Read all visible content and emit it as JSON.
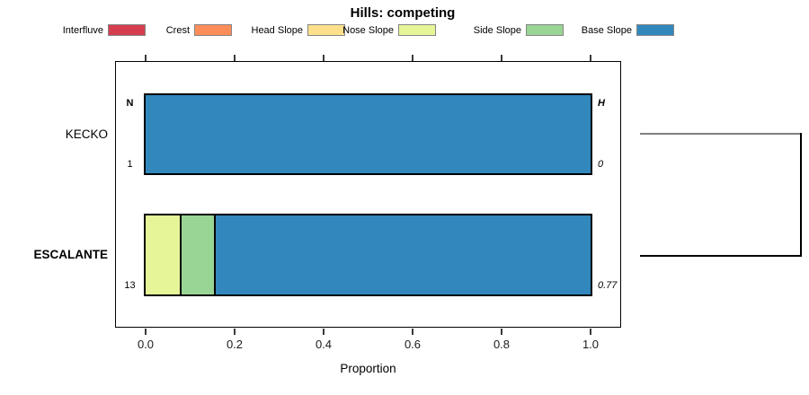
{
  "title": "Hills: competing",
  "legend": {
    "items": [
      {
        "label": "Interfluve",
        "color": "#D53E4F"
      },
      {
        "label": "Crest",
        "color": "#FC8D59"
      },
      {
        "label": "Head Slope",
        "color": "#FEE08B"
      },
      {
        "label": "Nose Slope",
        "color": "#E6F598"
      },
      {
        "label": "Side Slope",
        "color": "#99D594"
      },
      {
        "label": "Base Slope",
        "color": "#3288BD"
      }
    ]
  },
  "chart_data": {
    "type": "bar",
    "stacked": true,
    "orientation": "horizontal",
    "title": "Hills: competing",
    "xlabel": "Proportion",
    "xlim": [
      0,
      1.0
    ],
    "xticks": [
      "0.0",
      "0.2",
      "0.4",
      "0.6",
      "0.8",
      "1.0"
    ],
    "xtick_values": [
      0,
      0.2,
      0.4,
      0.6,
      0.8,
      1.0
    ],
    "grid": false,
    "legend_position": "top",
    "categories": [
      "KECKO",
      "ESCALANTE"
    ],
    "category_bold": [
      false,
      true
    ],
    "series": [
      {
        "name": "Interfluve",
        "color": "#D53E4F",
        "values": [
          0,
          0
        ]
      },
      {
        "name": "Crest",
        "color": "#FC8D59",
        "values": [
          0,
          0
        ]
      },
      {
        "name": "Head Slope",
        "color": "#FEE08B",
        "values": [
          0,
          0
        ]
      },
      {
        "name": "Nose Slope",
        "color": "#E6F598",
        "values": [
          0,
          0.077
        ]
      },
      {
        "name": "Side Slope",
        "color": "#99D594",
        "values": [
          0,
          0.077
        ]
      },
      {
        "name": "Base Slope",
        "color": "#3288BD",
        "values": [
          1.0,
          0.846
        ]
      }
    ],
    "annotations": {
      "n_header": "N",
      "h_header": "H",
      "n_values": [
        "1",
        "13"
      ],
      "h_values": [
        "0",
        "0.77"
      ]
    },
    "cluster_bracket": {
      "joined_rows": [
        "KECKO",
        "ESCALANTE"
      ],
      "top_line_color": "#808080",
      "line_color": "#000000"
    }
  }
}
